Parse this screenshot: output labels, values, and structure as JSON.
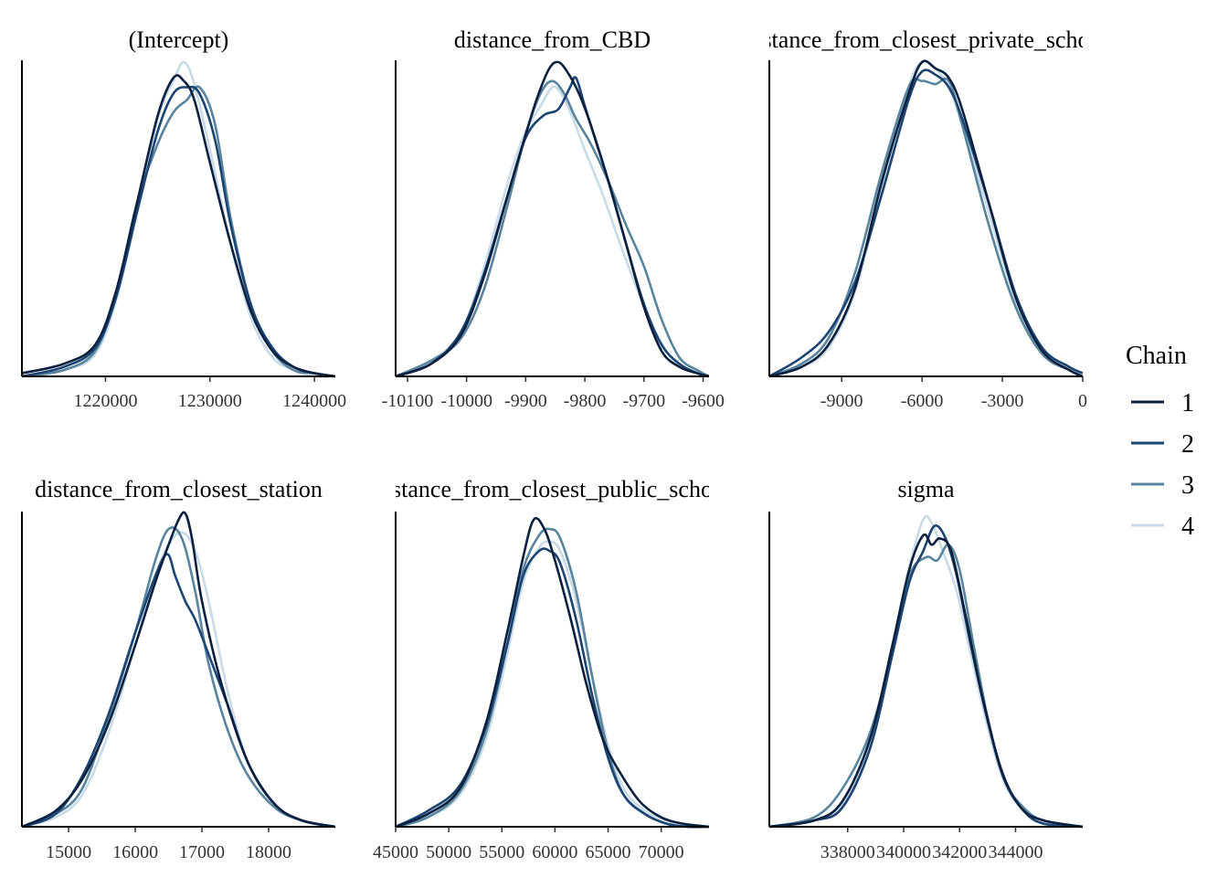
{
  "legend": {
    "title": "Chain",
    "entries": [
      "1",
      "2",
      "3",
      "4"
    ],
    "colors": [
      "#0b1f3f",
      "#1c4473",
      "#58849e",
      "#c8dbe7"
    ]
  },
  "chart_data": [
    {
      "type": "line",
      "title": "(Intercept)",
      "xlim": [
        1212000,
        1242000
      ],
      "ticks": [
        1220000,
        1230000,
        1240000
      ],
      "tick_labels": [
        "1220000",
        "1230000",
        "1240000"
      ],
      "series": [
        {
          "name": "1",
          "x": [
            1212000,
            1216000,
            1219000,
            1221000,
            1223000,
            1225000,
            1226500,
            1227500,
            1228500,
            1230000,
            1232000,
            1234000,
            1236000,
            1238000,
            1240000,
            1242000
          ],
          "y": [
            0.01,
            0.04,
            0.1,
            0.27,
            0.55,
            0.83,
            0.95,
            0.94,
            0.88,
            0.68,
            0.42,
            0.2,
            0.08,
            0.03,
            0.01,
            0.0
          ]
        },
        {
          "name": "2",
          "x": [
            1212000,
            1216000,
            1219000,
            1221000,
            1223000,
            1225000,
            1226500,
            1227800,
            1229000,
            1230500,
            1232000,
            1234000,
            1236000,
            1238000,
            1240000,
            1242000
          ],
          "y": [
            0.0,
            0.03,
            0.09,
            0.25,
            0.52,
            0.78,
            0.9,
            0.92,
            0.9,
            0.75,
            0.48,
            0.22,
            0.09,
            0.03,
            0.01,
            0.0
          ]
        },
        {
          "name": "3",
          "x": [
            1212000,
            1216000,
            1219000,
            1221000,
            1223000,
            1225000,
            1226500,
            1227800,
            1229000,
            1230500,
            1232000,
            1234000,
            1236000,
            1238000,
            1240000,
            1242000
          ],
          "y": [
            0.0,
            0.02,
            0.08,
            0.26,
            0.55,
            0.74,
            0.84,
            0.88,
            0.92,
            0.8,
            0.5,
            0.22,
            0.08,
            0.02,
            0.01,
            0.0
          ]
        },
        {
          "name": "4",
          "x": [
            1212000,
            1216000,
            1219000,
            1221000,
            1223000,
            1225000,
            1226500,
            1227500,
            1228500,
            1230000,
            1232000,
            1234000,
            1236000,
            1238000,
            1240000,
            1242000
          ],
          "y": [
            0.0,
            0.02,
            0.07,
            0.24,
            0.52,
            0.82,
            0.94,
            1.0,
            0.93,
            0.72,
            0.42,
            0.18,
            0.06,
            0.02,
            0.0,
            0.0
          ]
        }
      ]
    },
    {
      "type": "line",
      "title": "distance_from_CBD",
      "xlim": [
        -10120,
        -9590
      ],
      "ticks": [
        -10100,
        -10000,
        -9900,
        -9800,
        -9700,
        -9600
      ],
      "tick_labels": [
        "-10100",
        "-10000",
        "-9900",
        "-9800",
        "-9700",
        "-9600"
      ],
      "series": [
        {
          "name": "1",
          "x": [
            -10120,
            -10060,
            -10010,
            -9970,
            -9930,
            -9900,
            -9880,
            -9860,
            -9845,
            -9830,
            -9810,
            -9790,
            -9760,
            -9730,
            -9700,
            -9670,
            -9640,
            -9610,
            -9590
          ],
          "y": [
            0.0,
            0.04,
            0.13,
            0.32,
            0.58,
            0.77,
            0.89,
            0.98,
            1.0,
            0.97,
            0.9,
            0.8,
            0.62,
            0.42,
            0.22,
            0.08,
            0.03,
            0.01,
            0.0
          ]
        },
        {
          "name": "2",
          "x": [
            -10120,
            -10060,
            -10010,
            -9970,
            -9930,
            -9900,
            -9870,
            -9845,
            -9825,
            -9815,
            -9800,
            -9780,
            -9760,
            -9730,
            -9700,
            -9670,
            -9640,
            -9610,
            -9590
          ],
          "y": [
            0.0,
            0.04,
            0.14,
            0.33,
            0.58,
            0.76,
            0.83,
            0.85,
            0.92,
            0.95,
            0.86,
            0.74,
            0.62,
            0.42,
            0.23,
            0.1,
            0.04,
            0.01,
            0.0
          ]
        },
        {
          "name": "3",
          "x": [
            -10120,
            -10060,
            -10010,
            -9970,
            -9930,
            -9900,
            -9875,
            -9855,
            -9835,
            -9815,
            -9790,
            -9760,
            -9730,
            -9700,
            -9670,
            -9640,
            -9610,
            -9590
          ],
          "y": [
            0.0,
            0.05,
            0.12,
            0.28,
            0.55,
            0.77,
            0.9,
            0.94,
            0.9,
            0.82,
            0.74,
            0.62,
            0.48,
            0.35,
            0.18,
            0.06,
            0.02,
            0.0
          ]
        },
        {
          "name": "4",
          "x": [
            -10120,
            -10060,
            -10010,
            -9970,
            -9930,
            -9900,
            -9875,
            -9855,
            -9840,
            -9820,
            -9800,
            -9770,
            -9740,
            -9710,
            -9680,
            -9650,
            -9620,
            -9590
          ],
          "y": [
            0.0,
            0.05,
            0.14,
            0.35,
            0.62,
            0.78,
            0.86,
            0.92,
            0.9,
            0.82,
            0.72,
            0.58,
            0.42,
            0.27,
            0.14,
            0.05,
            0.02,
            0.0
          ]
        }
      ]
    },
    {
      "type": "line",
      "title": "distance_from_closest_private_school",
      "xlim": [
        -11700,
        0
      ],
      "ticks": [
        -9000,
        -6000,
        -3000,
        0
      ],
      "tick_labels": [
        "-9000",
        "-6000",
        "-3000",
        "0"
      ],
      "series": [
        {
          "name": "1",
          "x": [
            -11700,
            -10500,
            -9500,
            -8500,
            -7500,
            -6500,
            -6000,
            -5500,
            -5000,
            -4500,
            -3500,
            -2500,
            -1500,
            -500,
            0
          ],
          "y": [
            0.0,
            0.03,
            0.1,
            0.28,
            0.62,
            0.9,
            1.0,
            0.98,
            0.95,
            0.85,
            0.55,
            0.25,
            0.08,
            0.02,
            0.0
          ]
        },
        {
          "name": "2",
          "x": [
            -11700,
            -10500,
            -9500,
            -8500,
            -7500,
            -6500,
            -6000,
            -5500,
            -5000,
            -4500,
            -3500,
            -2500,
            -1500,
            -500,
            0
          ],
          "y": [
            0.0,
            0.06,
            0.14,
            0.3,
            0.58,
            0.88,
            0.97,
            0.96,
            0.92,
            0.82,
            0.55,
            0.26,
            0.09,
            0.03,
            0.01
          ]
        },
        {
          "name": "3",
          "x": [
            -11700,
            -10500,
            -9500,
            -8500,
            -7500,
            -6500,
            -6000,
            -5500,
            -5000,
            -4500,
            -3500,
            -2500,
            -1500,
            -500,
            0
          ],
          "y": [
            0.0,
            0.04,
            0.12,
            0.33,
            0.65,
            0.92,
            0.94,
            0.93,
            0.94,
            0.8,
            0.48,
            0.22,
            0.07,
            0.02,
            0.0
          ]
        },
        {
          "name": "4",
          "x": [
            -11700,
            -10500,
            -9500,
            -8500,
            -7500,
            -6500,
            -6000,
            -5500,
            -5000,
            -4500,
            -3500,
            -2500,
            -1500,
            -500,
            0
          ],
          "y": [
            0.0,
            0.03,
            0.09,
            0.27,
            0.6,
            0.92,
            1.0,
            0.98,
            0.92,
            0.8,
            0.52,
            0.24,
            0.08,
            0.02,
            0.0
          ]
        }
      ]
    },
    {
      "type": "line",
      "title": "distance_from_closest_station",
      "xlim": [
        14300,
        19000
      ],
      "ticks": [
        15000,
        16000,
        17000,
        18000
      ],
      "tick_labels": [
        "15000",
        "16000",
        "17000",
        "18000"
      ],
      "series": [
        {
          "name": "1",
          "x": [
            14300,
            14800,
            15200,
            15600,
            16000,
            16300,
            16500,
            16650,
            16750,
            16850,
            17000,
            17300,
            17700,
            18100,
            18500,
            19000
          ],
          "y": [
            0.0,
            0.05,
            0.15,
            0.33,
            0.58,
            0.78,
            0.9,
            0.98,
            1.0,
            0.92,
            0.72,
            0.45,
            0.2,
            0.07,
            0.02,
            0.0
          ]
        },
        {
          "name": "2",
          "x": [
            14300,
            14800,
            15200,
            15600,
            16000,
            16300,
            16480,
            16600,
            16750,
            16900,
            17100,
            17400,
            17700,
            18100,
            18500,
            19000
          ],
          "y": [
            0.0,
            0.04,
            0.16,
            0.36,
            0.62,
            0.8,
            0.87,
            0.8,
            0.72,
            0.66,
            0.55,
            0.38,
            0.2,
            0.07,
            0.02,
            0.0
          ]
        },
        {
          "name": "3",
          "x": [
            14300,
            14800,
            15200,
            15600,
            16000,
            16300,
            16500,
            16700,
            16900,
            17100,
            17400,
            17700,
            18100,
            18500,
            19000
          ],
          "y": [
            0.0,
            0.04,
            0.12,
            0.35,
            0.62,
            0.85,
            0.95,
            0.92,
            0.75,
            0.52,
            0.3,
            0.16,
            0.06,
            0.02,
            0.0
          ]
        },
        {
          "name": "4",
          "x": [
            14300,
            14800,
            15200,
            15600,
            16000,
            16300,
            16500,
            16700,
            16900,
            17100,
            17400,
            17700,
            18100,
            18500,
            19000
          ],
          "y": [
            0.0,
            0.03,
            0.1,
            0.3,
            0.58,
            0.8,
            0.9,
            0.94,
            0.88,
            0.72,
            0.42,
            0.2,
            0.07,
            0.02,
            0.0
          ]
        }
      ]
    },
    {
      "type": "line",
      "title": "distance_from_closest_public_school",
      "xlim": [
        45000,
        74500
      ],
      "ticks": [
        45000,
        50000,
        55000,
        60000,
        65000,
        70000
      ],
      "tick_labels": [
        "45000",
        "50000",
        "55000",
        "60000",
        "65000",
        "70000"
      ],
      "series": [
        {
          "name": "1",
          "x": [
            45000,
            48000,
            51000,
            53500,
            55500,
            57000,
            58000,
            59000,
            60000,
            61500,
            63000,
            64500,
            66000,
            68000,
            70000,
            72000,
            74500
          ],
          "y": [
            0.0,
            0.04,
            0.12,
            0.33,
            0.62,
            0.86,
            0.98,
            0.95,
            0.85,
            0.66,
            0.45,
            0.28,
            0.18,
            0.08,
            0.03,
            0.01,
            0.0
          ]
        },
        {
          "name": "2",
          "x": [
            45000,
            48000,
            51000,
            53500,
            55500,
            57000,
            58500,
            59500,
            60500,
            62000,
            63500,
            65000,
            66500,
            68500,
            70500,
            72500,
            74500
          ],
          "y": [
            0.0,
            0.05,
            0.13,
            0.32,
            0.58,
            0.8,
            0.88,
            0.88,
            0.84,
            0.66,
            0.42,
            0.22,
            0.1,
            0.04,
            0.01,
            0.0,
            0.0
          ]
        },
        {
          "name": "3",
          "x": [
            45000,
            48000,
            51000,
            53500,
            55500,
            57000,
            58500,
            59500,
            60500,
            62000,
            63500,
            65000,
            66500,
            68500,
            70500,
            72500,
            74500
          ],
          "y": [
            0.0,
            0.03,
            0.11,
            0.3,
            0.58,
            0.82,
            0.93,
            0.95,
            0.92,
            0.75,
            0.48,
            0.24,
            0.1,
            0.04,
            0.01,
            0.0,
            0.0
          ]
        },
        {
          "name": "4",
          "x": [
            45000,
            48000,
            51000,
            53500,
            55500,
            57000,
            58500,
            59500,
            60500,
            62000,
            63500,
            65000,
            66500,
            68500,
            70500,
            72500,
            74500
          ],
          "y": [
            0.0,
            0.03,
            0.1,
            0.28,
            0.55,
            0.78,
            0.89,
            0.91,
            0.88,
            0.72,
            0.48,
            0.26,
            0.12,
            0.05,
            0.02,
            0.0,
            0.0
          ]
        }
      ]
    },
    {
      "type": "line",
      "title": "sigma",
      "xlim": [
        335200,
        346400
      ],
      "ticks": [
        338000,
        340000,
        342000,
        344000
      ],
      "tick_labels": [
        "338000",
        "340000",
        "342000",
        "344000"
      ],
      "series": [
        {
          "name": "1",
          "x": [
            335200,
            336800,
            337800,
            338800,
            339600,
            340200,
            340700,
            341000,
            341300,
            341700,
            342200,
            342800,
            343500,
            344200,
            345000,
            346400
          ],
          "y": [
            0.0,
            0.02,
            0.08,
            0.28,
            0.58,
            0.82,
            0.93,
            0.9,
            0.92,
            0.88,
            0.68,
            0.42,
            0.18,
            0.06,
            0.02,
            0.0
          ]
        },
        {
          "name": "2",
          "x": [
            335200,
            336800,
            337800,
            338800,
            339600,
            340200,
            340700,
            341100,
            341500,
            341900,
            342400,
            343000,
            343600,
            344300,
            345000,
            346400
          ],
          "y": [
            0.0,
            0.02,
            0.06,
            0.25,
            0.55,
            0.78,
            0.88,
            0.96,
            0.92,
            0.8,
            0.58,
            0.34,
            0.15,
            0.05,
            0.01,
            0.0
          ]
        },
        {
          "name": "3",
          "x": [
            335200,
            336800,
            337800,
            338800,
            339600,
            340200,
            340800,
            341200,
            341600,
            342000,
            342500,
            343000,
            343600,
            344300,
            345000,
            346400
          ],
          "y": [
            0.0,
            0.03,
            0.12,
            0.3,
            0.56,
            0.8,
            0.86,
            0.85,
            0.9,
            0.82,
            0.58,
            0.35,
            0.15,
            0.06,
            0.02,
            0.0
          ]
        },
        {
          "name": "4",
          "x": [
            335200,
            336800,
            337800,
            338800,
            339600,
            340200,
            340700,
            341000,
            341400,
            341900,
            342400,
            343000,
            343600,
            344300,
            345000,
            346400
          ],
          "y": [
            0.0,
            0.02,
            0.07,
            0.27,
            0.58,
            0.83,
            0.98,
            0.97,
            0.88,
            0.75,
            0.55,
            0.32,
            0.14,
            0.05,
            0.01,
            0.0
          ]
        }
      ]
    }
  ]
}
